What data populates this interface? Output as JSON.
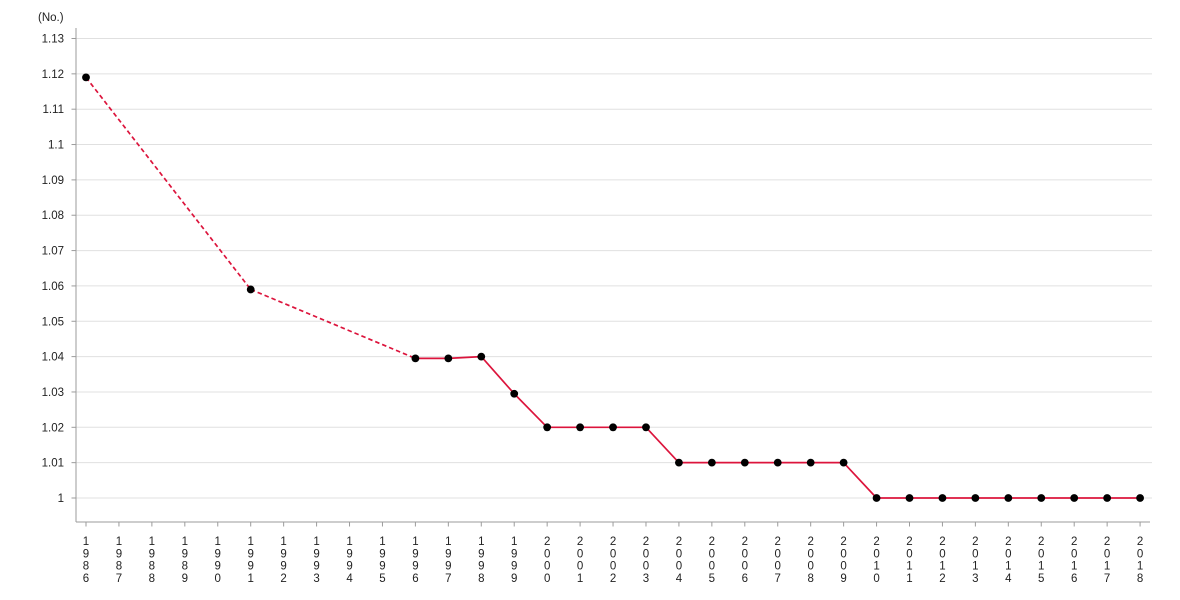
{
  "chart_data": {
    "type": "line",
    "title": "",
    "unit_label": "(No.)",
    "xlabel": "",
    "ylabel": "",
    "x_categories": [
      "1986",
      "1987",
      "1988",
      "1989",
      "1990",
      "1991",
      "1992",
      "1993",
      "1994",
      "1995",
      "1996",
      "1997",
      "1998",
      "1999",
      "2000",
      "2001",
      "2002",
      "2003",
      "2004",
      "2005",
      "2006",
      "2007",
      "2008",
      "2009",
      "2010",
      "2011",
      "2012",
      "2013",
      "2014",
      "2015",
      "2016",
      "2017",
      "2018"
    ],
    "series": [
      {
        "name": "value",
        "color": "#dc143c",
        "marker": "circle",
        "marker_color": "#000000",
        "gap_style": "dashed-interpolation",
        "values": [
          1.119,
          null,
          null,
          null,
          null,
          1.059,
          null,
          null,
          null,
          null,
          1.0395,
          1.0395,
          1.04,
          1.0295,
          1.02,
          1.02,
          1.02,
          1.02,
          1.01,
          1.01,
          1.01,
          1.01,
          1.01,
          1.01,
          1.0,
          1.0,
          1.0,
          1.0,
          1.0,
          1.0,
          1.0,
          1.0,
          1.0
        ]
      }
    ],
    "ylim": [
      1.0,
      1.13
    ],
    "ytick_labels": [
      "1",
      "1.01",
      "1.02",
      "1.03",
      "1.04",
      "1.05",
      "1.06",
      "1.07",
      "1.08",
      "1.09",
      "1.1",
      "1.11",
      "1.12",
      "1.13"
    ],
    "grid": "horizontal",
    "legend": "none",
    "x_label_orientation": "vertical-stacked"
  },
  "colors": {
    "background": "#ffffff",
    "grid": "#e0e0e0",
    "axis": "#9b9b9b",
    "tick": "#9b9b9b",
    "text": "#222222",
    "line": "#dc143c",
    "marker": "#000000"
  }
}
